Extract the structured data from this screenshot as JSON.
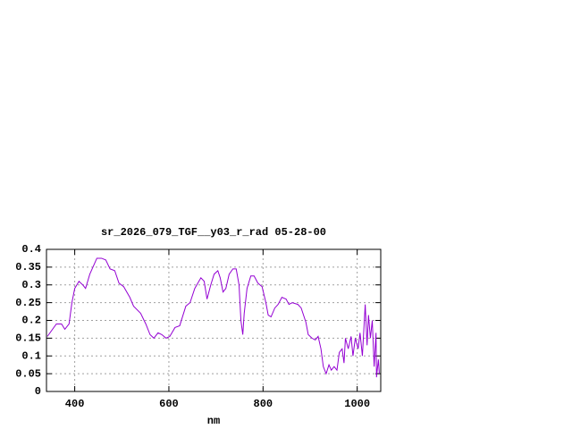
{
  "chart_data": {
    "type": "line",
    "title": "sr_2026_079_TGF__y03_r_rad 05-28-00",
    "x_label": "nm",
    "color": "#9400d3",
    "grid": true,
    "xlim": [
      340,
      1050
    ],
    "ylim": [
      0,
      0.4
    ],
    "xticks": [
      400,
      600,
      800,
      1000
    ],
    "yticks": [
      0,
      0.05,
      0.1,
      0.15,
      0.2,
      0.25,
      0.3,
      0.35,
      0.4
    ],
    "x": [
      342,
      361,
      372,
      379,
      388,
      394,
      400,
      409,
      417,
      423,
      432,
      442,
      447,
      457,
      466,
      475,
      485,
      494,
      504,
      517,
      525,
      540,
      551,
      560,
      568,
      577,
      585,
      594,
      602,
      613,
      623,
      636,
      645,
      655,
      668,
      675,
      681,
      689,
      696,
      704,
      709,
      715,
      721,
      728,
      736,
      743,
      749,
      753,
      757,
      760,
      766,
      774,
      781,
      789,
      798,
      806,
      811,
      817,
      825,
      832,
      840,
      849,
      855,
      862,
      874,
      881,
      891,
      896,
      904,
      911,
      917,
      923,
      928,
      934,
      940,
      945,
      951,
      957,
      962,
      968,
      972,
      975,
      981,
      987,
      991,
      996,
      1002,
      1006,
      1011,
      1017,
      1021,
      1024,
      1028,
      1032,
      1036,
      1040,
      1041,
      1045,
      1047
    ],
    "values": [
      0.155,
      0.19,
      0.19,
      0.175,
      0.19,
      0.25,
      0.29,
      0.31,
      0.3,
      0.29,
      0.33,
      0.36,
      0.375,
      0.375,
      0.37,
      0.345,
      0.34,
      0.305,
      0.295,
      0.265,
      0.24,
      0.22,
      0.19,
      0.16,
      0.15,
      0.165,
      0.16,
      0.15,
      0.155,
      0.18,
      0.185,
      0.24,
      0.25,
      0.29,
      0.32,
      0.31,
      0.26,
      0.3,
      0.33,
      0.34,
      0.32,
      0.28,
      0.29,
      0.33,
      0.345,
      0.345,
      0.3,
      0.2,
      0.16,
      0.22,
      0.29,
      0.325,
      0.325,
      0.305,
      0.295,
      0.25,
      0.215,
      0.21,
      0.235,
      0.245,
      0.265,
      0.26,
      0.245,
      0.25,
      0.245,
      0.235,
      0.195,
      0.16,
      0.15,
      0.145,
      0.155,
      0.12,
      0.07,
      0.05,
      0.075,
      0.06,
      0.07,
      0.06,
      0.11,
      0.12,
      0.08,
      0.15,
      0.12,
      0.155,
      0.1,
      0.15,
      0.12,
      0.165,
      0.1,
      0.245,
      0.13,
      0.215,
      0.15,
      0.2,
      0.07,
      0.165,
      0.04,
      0.09,
      0.05
    ]
  }
}
